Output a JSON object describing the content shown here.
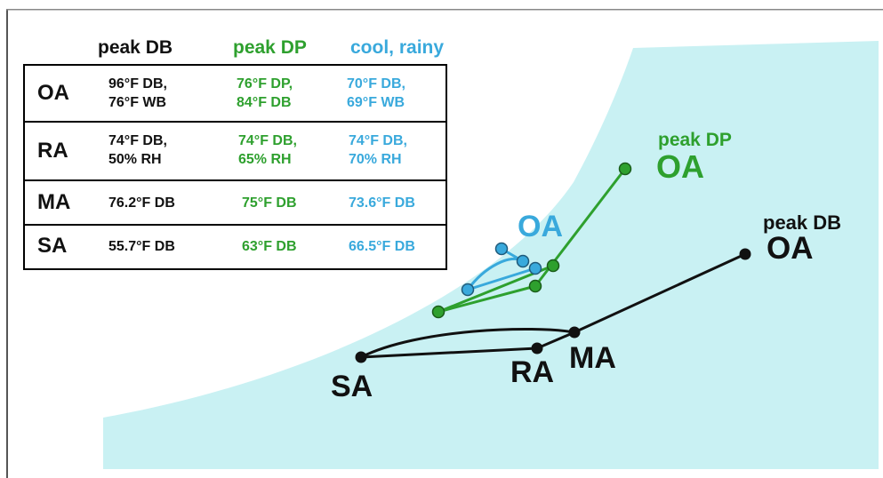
{
  "colors": {
    "black": "#111111",
    "green": "#2ea02e",
    "blue": "#39a9dc",
    "region": "#c9f1f3"
  },
  "table": {
    "headers": [
      "peak DB",
      "peak DP",
      "cool, rainy"
    ],
    "rows": [
      {
        "label": "OA",
        "peak_db": "96°F DB,\n76°F WB",
        "peak_dp": "76°F DP,\n84°F DB",
        "cool_rainy": "70°F DB,\n69°F WB"
      },
      {
        "label": "RA",
        "peak_db": "74°F DB,\n50% RH",
        "peak_dp": "74°F DB,\n65% RH",
        "cool_rainy": "74°F DB,\n70% RH"
      },
      {
        "label": "MA",
        "peak_db": "76.2°F DB",
        "peak_dp": "75°F DB",
        "cool_rainy": "73.6°F DB"
      },
      {
        "label": "SA",
        "peak_db": "55.7°F DB",
        "peak_dp": "63°F DB",
        "cool_rainy": "66.5°F DB"
      }
    ]
  },
  "diagram_labels": {
    "peak_dp_title": "peak DP",
    "peak_dp_oa": "OA",
    "cool_oa": "OA",
    "peak_db_title": "peak DB",
    "peak_db_oa": "OA",
    "sa": "SA",
    "ra": "RA",
    "ma": "MA"
  }
}
